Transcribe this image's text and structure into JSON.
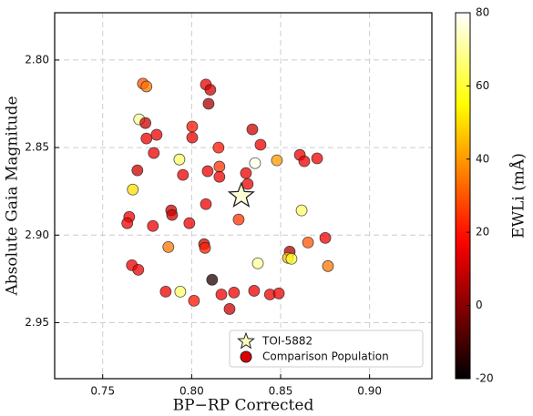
{
  "chart_data": {
    "type": "scatter",
    "xlabel": "BP−RP Corrected",
    "ylabel": "Absolute Gaia Magnitude",
    "colorbar_label": "EWLi (mÅ)",
    "colormap": "hot",
    "grid": true,
    "xlim": [
      0.723,
      0.935
    ],
    "xticks": [
      0.75,
      {
        "value": 0.8,
        "label": "0.80"
      },
      0.85,
      {
        "value": 0.9,
        "label": "0.90"
      }
    ],
    "ylim": [
      2.982,
      2.773
    ],
    "yticks": [
      {
        "value": 2.8,
        "label": "2.80"
      },
      2.85,
      {
        "value": 2.9,
        "label": "2.90"
      },
      2.95
    ],
    "clim": [
      -20,
      80
    ],
    "cticks": [
      -20,
      0,
      20,
      40,
      60,
      80
    ],
    "series": [
      {
        "name": "TOI-5882",
        "marker": "star",
        "color": "#ffffc0",
        "x": [
          0.8279
        ],
        "y": [
          2.8776
        ],
        "c": [
          76
        ]
      },
      {
        "name": "Comparison Population",
        "marker": "circle",
        "color": "#dd0000",
        "x": [
          0.7726,
          0.7746,
          0.808,
          0.8105,
          0.8095,
          0.7705,
          0.774,
          0.7746,
          0.7803,
          0.8003,
          0.8003,
          0.8341,
          0.8387,
          0.8151,
          0.7787,
          0.7931,
          0.8608,
          0.8633,
          0.8705,
          0.8356,
          0.8479,
          0.8156,
          0.809,
          0.7951,
          0.7695,
          0.8305,
          0.8156,
          0.8315,
          0.7669,
          0.808,
          0.7885,
          0.789,
          0.7649,
          0.7638,
          0.7782,
          0.8264,
          0.8618,
          0.7987,
          0.807,
          0.8075,
          0.7869,
          0.8654,
          0.8751,
          0.8551,
          0.8541,
          0.8561,
          0.8372,
          0.8766,
          0.7664,
          0.77,
          0.8115,
          0.7854,
          0.7936,
          0.8167,
          0.8238,
          0.8351,
          0.844,
          0.849,
          0.8013,
          0.8213
        ],
        "y": [
          2.8135,
          2.8151,
          2.814,
          2.817,
          2.825,
          2.8339,
          2.836,
          2.8448,
          2.8427,
          2.838,
          2.8443,
          2.8396,
          2.8484,
          2.85,
          2.8531,
          2.8568,
          2.8542,
          2.8578,
          2.8562,
          2.8589,
          2.8573,
          2.8609,
          2.8635,
          2.8656,
          2.863,
          2.8646,
          2.8667,
          2.8708,
          2.874,
          2.8823,
          2.8859,
          2.8885,
          2.8896,
          2.8932,
          2.8948,
          2.8911,
          2.8859,
          2.8932,
          2.9052,
          2.9073,
          2.9068,
          2.9042,
          2.9016,
          2.9094,
          2.913,
          2.9135,
          2.9161,
          2.9177,
          2.9172,
          2.9198,
          2.9255,
          2.9323,
          2.9323,
          2.9339,
          2.9328,
          2.9318,
          2.9339,
          2.9333,
          2.9375,
          2.9422
        ],
        "c": [
          30,
          35,
          15,
          10,
          5,
          70,
          10,
          15,
          15,
          20,
          15,
          10,
          15,
          20,
          15,
          65,
          15,
          15,
          15,
          78,
          40,
          25,
          15,
          15,
          10,
          15,
          15,
          15,
          50,
          15,
          10,
          10,
          15,
          15,
          15,
          25,
          65,
          15,
          10,
          22,
          35,
          30,
          15,
          5,
          45,
          60,
          70,
          35,
          15,
          15,
          -15,
          15,
          65,
          15,
          15,
          15,
          15,
          15,
          20,
          10
        ]
      }
    ]
  }
}
